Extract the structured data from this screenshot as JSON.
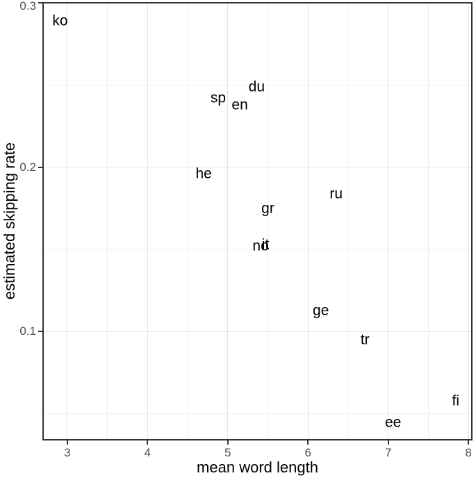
{
  "chart_data": {
    "type": "scatter",
    "title": "",
    "xlabel": "mean word length",
    "ylabel": "estimated skipping rate",
    "xlim": [
      2.69,
      8.05
    ],
    "ylim": [
      0.0338,
      0.3005
    ],
    "x_ticks": [
      3,
      4,
      5,
      6,
      7,
      8
    ],
    "x_tick_labels": [
      "3",
      "4",
      "5",
      "6",
      "7",
      "8"
    ],
    "x_minor_gridlines": [
      3.5,
      4.5,
      5.5,
      6.5,
      7.5
    ],
    "y_ticks": [
      0.1,
      0.2,
      0.3
    ],
    "y_tick_labels": [
      "0.1",
      "0.2",
      "0.3"
    ],
    "y_minor_gridlines": [
      0.05,
      0.15,
      0.25
    ],
    "grid": "major-and-minor",
    "legend": "none",
    "marker": "text-labels",
    "points": [
      {
        "label": "ko",
        "x": 2.91,
        "y": 0.289
      },
      {
        "label": "sp",
        "x": 4.88,
        "y": 0.242
      },
      {
        "label": "du",
        "x": 5.36,
        "y": 0.249
      },
      {
        "label": "en",
        "x": 5.15,
        "y": 0.238
      },
      {
        "label": "he",
        "x": 4.7,
        "y": 0.196
      },
      {
        "label": "ru",
        "x": 6.35,
        "y": 0.184
      },
      {
        "label": "gr",
        "x": 5.5,
        "y": 0.175
      },
      {
        "label": "it",
        "x": 5.47,
        "y": 0.153
      },
      {
        "label": "no",
        "x": 5.41,
        "y": 0.152
      },
      {
        "label": "ge",
        "x": 6.16,
        "y": 0.113
      },
      {
        "label": "tr",
        "x": 6.71,
        "y": 0.095
      },
      {
        "label": "fi",
        "x": 7.84,
        "y": 0.058
      },
      {
        "label": "ee",
        "x": 7.06,
        "y": 0.045
      }
    ],
    "colors": {
      "background": "#ffffff",
      "panel_background": "#ffffff",
      "panel_border": "#333333",
      "major_grid": "#e2e2e2",
      "minor_grid": "#eeeeee",
      "tick_mark": "#333333",
      "tick_label": "#4d4d4d",
      "axis_title": "#000000",
      "point_label": "#000000"
    }
  }
}
